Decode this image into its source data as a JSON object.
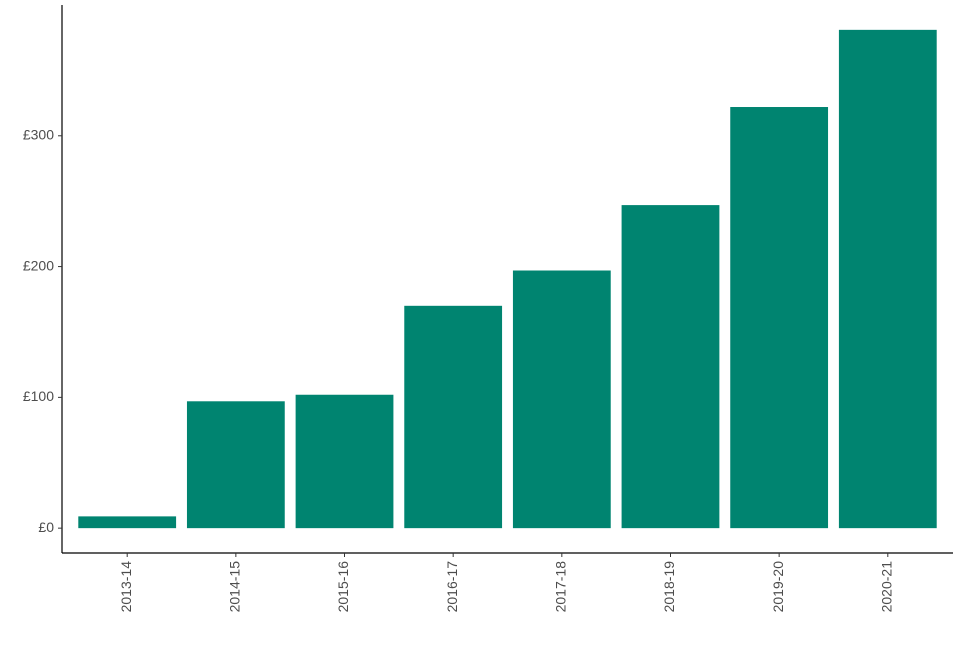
{
  "chart_data": {
    "type": "bar",
    "categories": [
      "2013-14",
      "2014-15",
      "2015-16",
      "2016-17",
      "2017-18",
      "2018-19",
      "2019-20",
      "2020-21"
    ],
    "values": [
      9,
      97,
      102,
      170,
      197,
      247,
      322,
      381
    ],
    "color": "#008470",
    "ylim": [
      -19,
      400
    ],
    "yticks": [
      {
        "value": 0,
        "label": "£0"
      },
      {
        "value": 100,
        "label": "£100"
      },
      {
        "value": 200,
        "label": "£200"
      },
      {
        "value": 300,
        "label": "£300"
      }
    ],
    "grid": false
  }
}
